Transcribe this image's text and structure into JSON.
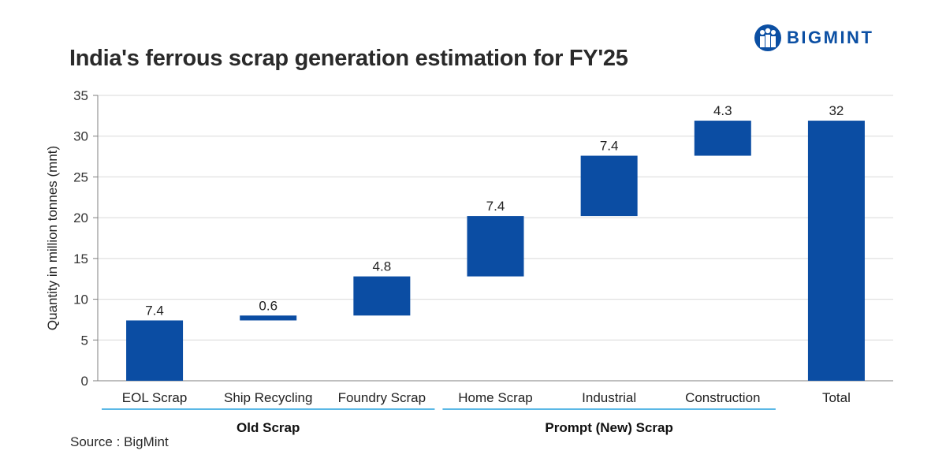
{
  "title": "India's ferrous scrap generation estimation for FY'25",
  "logo": {
    "text": "BIGMINT",
    "icon": "bigmint-people-icon",
    "color": "#0b4fa3"
  },
  "source": "Source : BigMint",
  "colors": {
    "bar": "#0b4da3",
    "group_line": "#5bb8e6",
    "grid": "#d9d9d9",
    "axis": "#7f7f7f"
  },
  "chart_data": {
    "type": "waterfall",
    "title": "India's ferrous scrap generation estimation for FY'25",
    "ylabel": "Quantity in million tonnes (mnt)",
    "xlabel": "",
    "ylim": [
      0,
      35
    ],
    "yticks": [
      0,
      5,
      10,
      15,
      20,
      25,
      30,
      35
    ],
    "grid": true,
    "categories": [
      "EOL Scrap",
      "Ship Recycling",
      "Foundry Scrap",
      "Home Scrap",
      "Industrial",
      "Construction",
      "Total"
    ],
    "values": [
      7.4,
      0.6,
      4.8,
      7.4,
      7.4,
      4.3,
      32
    ],
    "value_labels": [
      "7.4",
      "0.6",
      "4.8",
      "7.4",
      "7.4",
      "4.3",
      "32"
    ],
    "bar_ranges": [
      [
        0,
        7.4
      ],
      [
        7.4,
        8.0
      ],
      [
        8.0,
        12.8
      ],
      [
        12.8,
        20.2
      ],
      [
        20.2,
        27.6
      ],
      [
        27.6,
        31.9
      ],
      [
        0,
        31.9
      ]
    ],
    "groups": [
      {
        "label": "Old Scrap",
        "categories": [
          "EOL Scrap",
          "Ship Recycling",
          "Foundry Scrap"
        ]
      },
      {
        "label": "Prompt (New) Scrap",
        "categories": [
          "Home Scrap",
          "Industrial",
          "Construction"
        ]
      }
    ]
  }
}
